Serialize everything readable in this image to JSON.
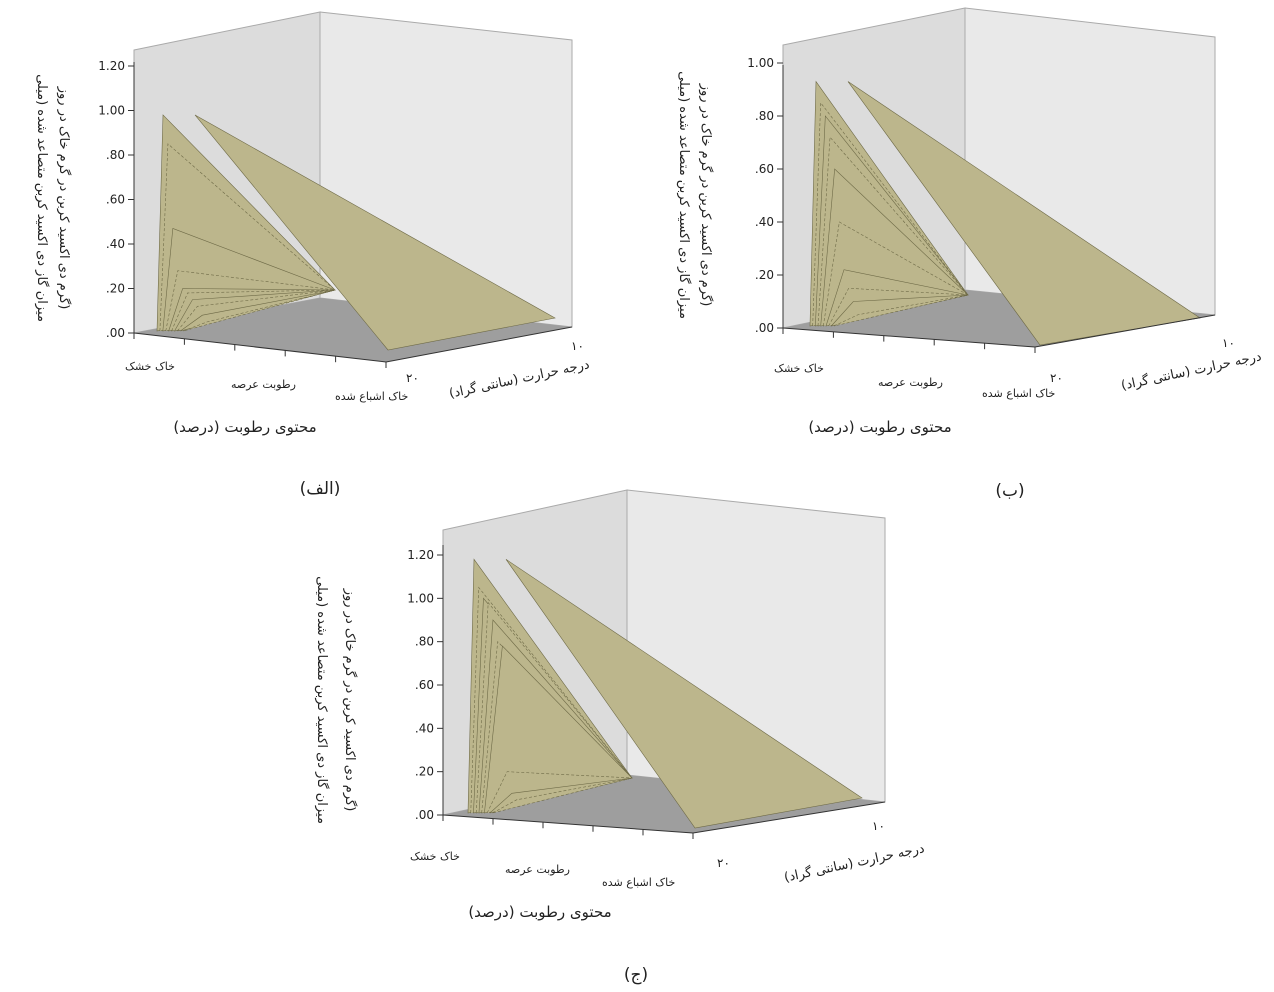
{
  "figure": {
    "panels": [
      {
        "label": "(الف)",
        "ylabel_line1": "میزان گاز دی اکسید کربن متصاعد شده (میلی",
        "ylabel_line2": "گرم دی اکسید کربن در گرم خاک در روز)",
        "zlabel": "درجه حرارت (سانتی گراد)",
        "xlabel": "محتوی رطوبت (درصد)",
        "depth_ticks": [
          "۱۰",
          "۲۰"
        ],
        "moisture_ticks": [
          "خاک خشک",
          "رطوبت عرصه",
          "خاک اشباع شده"
        ]
      },
      {
        "label": "(ب)",
        "ylabel_line1": "میزان گاز دی اکسید کربن متصاعد شده (میلی",
        "ylabel_line2": "گرم دی اکسید کربن در گرم خاک در روز)",
        "zlabel": "درجه حرارت (سانتی گراد)",
        "xlabel": "محتوی رطوبت (درصد)",
        "depth_ticks": [
          "۱۰",
          "۲۰"
        ],
        "moisture_ticks": [
          "خاک خشک",
          "رطوبت عرصه",
          "خاک اشباع شده"
        ]
      },
      {
        "label": "(ج)",
        "ylabel_line1": "میزان گاز دی اکسید کربن متصاعد شده (میلی",
        "ylabel_line2": "گرم دی اکسید کربن در گرم خاک در روز)",
        "zlabel": "درجه حرارت (سانتی گراد)",
        "xlabel": "محتوی رطوبت (درصد)",
        "depth_ticks": [
          "۱۰",
          "۲۰"
        ],
        "moisture_ticks": [
          "خاک خشک",
          "رطوبت عرصه",
          "خاک اشباع شده"
        ]
      }
    ],
    "colors": {
      "surface": "#bcb68c",
      "surface_edge": "#6e6a47",
      "back_wall": "#dcdcdc",
      "side_wall": "#e9e9e9",
      "floor": "#9e9e9e",
      "axis": "#333333"
    }
  },
  "chart_data": [
    {
      "type": "area",
      "title": "",
      "ylabel": "میزان گاز دی اکسید کربن متصاعد شده (میلی گرم دی اکسید کربن در گرم خاک در روز)",
      "xlabel": "محتوی رطوبت (درصد)",
      "zlabel": "درجه حرارت (سانتی گراد)",
      "yticks": [
        ".00",
        ".20",
        ".40",
        ".60",
        ".80",
        "1.00",
        "1.20"
      ],
      "ylim": [
        0,
        1.2
      ],
      "categories": [
        "خاک خشک",
        "رطوبت عرصه",
        "خاک اشباع شده"
      ],
      "temperatures": [
        "۱۰",
        "۲۰"
      ],
      "profile_peaks": [
        0.98,
        0.85,
        0.47,
        0.28,
        0.2,
        0.18,
        0.15,
        0.12,
        0.08,
        0.05
      ],
      "far_point": 0.0
    },
    {
      "type": "area",
      "title": "",
      "ylabel": "میزان گاز دی اکسید کربن متصاعد شده (میلی گرم دی اکسید کربن در گرم خاک در روز)",
      "xlabel": "محتوی رطوبت (درصد)",
      "zlabel": "درجه حرارت (سانتی گراد)",
      "yticks": [
        ".00",
        ".20",
        ".40",
        ".60",
        ".80",
        "1.00"
      ],
      "ylim": [
        0,
        1.0
      ],
      "categories": [
        "خاک خشک",
        "رطوبت عرصه",
        "خاک اشباع شده"
      ],
      "temperatures": [
        "۱۰",
        "۲۰"
      ],
      "profile_peaks": [
        0.93,
        0.85,
        0.8,
        0.72,
        0.6,
        0.4,
        0.22,
        0.15,
        0.1,
        0.05
      ],
      "far_point": 0.0
    },
    {
      "type": "area",
      "title": "",
      "ylabel": "میزان گاز دی اکسید کربن متصاعد شده (میلی گرم دی اکسید کربن در گرم خاک در روز)",
      "xlabel": "محتوی رطوبت (درصد)",
      "zlabel": "درجه حرارت (سانتی گراد)",
      "yticks": [
        ".00",
        ".20",
        ".40",
        ".60",
        ".80",
        "1.00",
        "1.20"
      ],
      "ylim": [
        0,
        1.2
      ],
      "categories": [
        "خاک خشک",
        "رطوبت عرصه",
        "خاک اشباع شده"
      ],
      "temperatures": [
        "۱۰",
        "۲۰"
      ],
      "profile_peaks": [
        1.18,
        1.05,
        1.0,
        0.98,
        0.9,
        0.8,
        0.78,
        0.2,
        0.1,
        0.07
      ],
      "far_point": 0.0
    }
  ]
}
